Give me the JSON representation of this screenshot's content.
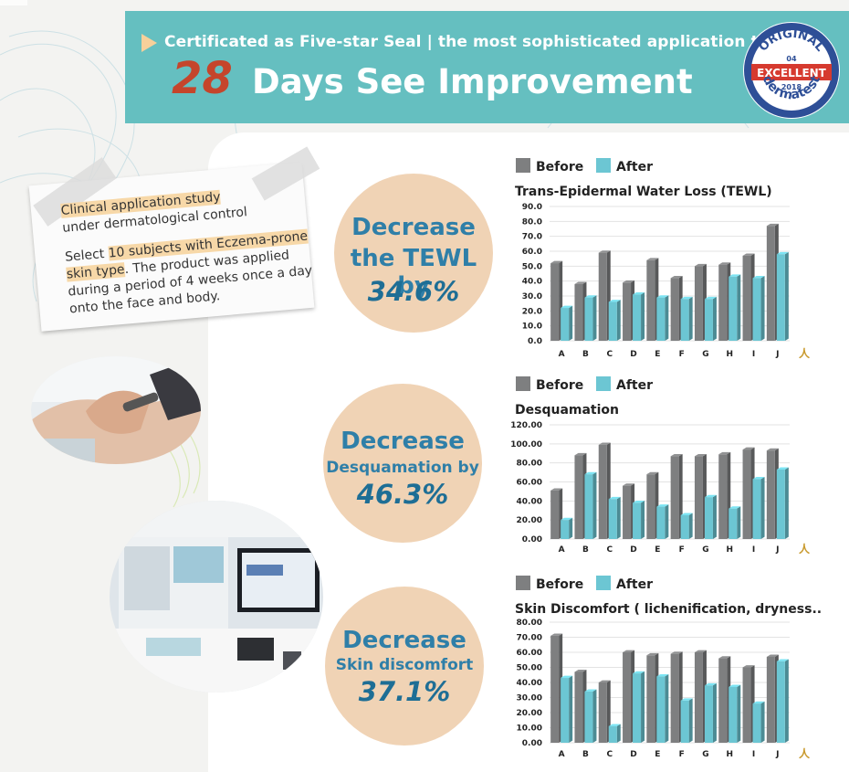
{
  "banner": {
    "subtitle": "Certificated as Five-star Seal | the most sophisticated application test",
    "number": "28",
    "title": "Days See Improvement",
    "seal": {
      "top": "ORIGINAL",
      "badge": "EXCELLENT",
      "num": "04",
      "year": "2018",
      "bottom": "dermatest"
    }
  },
  "note": {
    "line1": "Clinical application study",
    "line2": "under  dermatological control",
    "body_pre": "Select ",
    "body_hl": "10 subjects with Eczema-prone skin type",
    "body_post": ". The product was applied during a period of 4 weeks once a day onto the face and body."
  },
  "circles": [
    {
      "line1": "Decrease",
      "line2": "the TEWL by",
      "pct": "34.6%"
    },
    {
      "line1": "Decrease",
      "line2": "Desquamation by",
      "pct": "46.3%"
    },
    {
      "line1": "Decrease",
      "line2": "Skin discomfort",
      "pct": "37.1%"
    }
  ],
  "colors": {
    "before": "#7e7f80",
    "after": "#6cc6d3",
    "teal": "#65bfc0",
    "peach": "#f0d3b5"
  },
  "chart_data": [
    {
      "type": "bar",
      "title": "Trans-Epidermal Water Loss (TEWL)",
      "legend": [
        "Before",
        "After"
      ],
      "categories": [
        "A",
        "B",
        "C",
        "D",
        "E",
        "F",
        "G",
        "H",
        "I",
        "J"
      ],
      "unit_label": "人",
      "ylim": [
        0,
        90
      ],
      "ticks": [
        "90.0",
        "80.0",
        "70.0",
        "60.0",
        "50.0",
        "40.0",
        "30.0",
        "20.0",
        "10.0",
        "0.0"
      ],
      "series": [
        {
          "name": "Before",
          "values": [
            52,
            38,
            59,
            39,
            54,
            42,
            50,
            51,
            57,
            77
          ]
        },
        {
          "name": "After",
          "values": [
            22,
            29,
            26,
            31,
            29,
            28,
            28,
            43,
            42,
            58
          ]
        }
      ]
    },
    {
      "type": "bar",
      "title": "Desquamation",
      "legend": [
        "Before",
        "After"
      ],
      "categories": [
        "A",
        "B",
        "C",
        "D",
        "E",
        "F",
        "G",
        "H",
        "I",
        "J"
      ],
      "unit_label": "人",
      "ylim": [
        0,
        120
      ],
      "ticks": [
        "120.00",
        "100.00",
        "80.00",
        "60.00",
        "40.00",
        "20.00",
        "0.00"
      ],
      "series": [
        {
          "name": "Before",
          "values": [
            51,
            88,
            99,
            56,
            68,
            87,
            87,
            89,
            94,
            93
          ]
        },
        {
          "name": "After",
          "values": [
            20,
            68,
            42,
            38,
            34,
            25,
            44,
            32,
            63,
            73
          ]
        }
      ]
    },
    {
      "type": "bar",
      "title": "Skin Discomfort ( lichenification, dryness...)",
      "legend": [
        "Before",
        "After"
      ],
      "categories": [
        "A",
        "B",
        "C",
        "D",
        "E",
        "F",
        "G",
        "H",
        "I",
        "J"
      ],
      "unit_label": "人",
      "ylim": [
        0,
        80
      ],
      "ticks": [
        "80.00",
        "70.00",
        "60.00",
        "50.00",
        "40.00",
        "30.00",
        "20.00",
        "10.00",
        "0.00"
      ],
      "series": [
        {
          "name": "Before",
          "values": [
            71,
            47,
            40,
            60,
            58,
            59,
            60,
            56,
            50,
            57
          ]
        },
        {
          "name": "After",
          "values": [
            43,
            34,
            11,
            46,
            44,
            28,
            38,
            37,
            26,
            54
          ]
        }
      ]
    }
  ]
}
